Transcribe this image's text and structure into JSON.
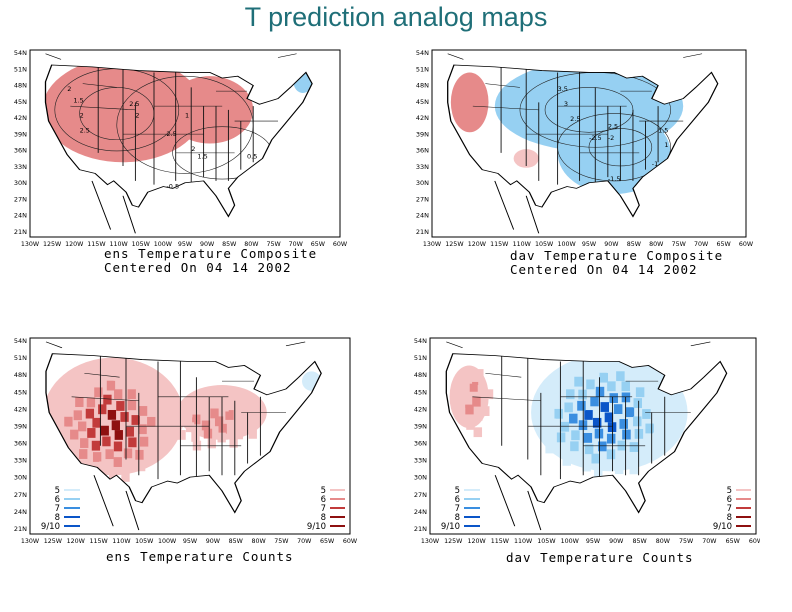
{
  "page": {
    "title": "T prediction analog maps"
  },
  "axes": {
    "lat_labels": [
      "54N",
      "51N",
      "48N",
      "45N",
      "42N",
      "39N",
      "36N",
      "33N",
      "30N",
      "27N",
      "24N",
      "21N"
    ],
    "lon_labels": [
      "130W",
      "125W",
      "120W",
      "115W",
      "110W",
      "105W",
      "100W",
      "95W",
      "90W",
      "85W",
      "80W",
      "75W",
      "70W",
      "65W",
      "60W"
    ]
  },
  "panels": [
    {
      "id": "ens-composite",
      "caption_line1": "ens Temperature Composite",
      "caption_line2": "Centered On 04 14 2002",
      "contour_labels": [
        "2",
        "1.5",
        "2",
        "2.5",
        "2.5",
        "2",
        "2.5",
        "2",
        "1",
        "1.5",
        "-0.5",
        "0.5"
      ]
    },
    {
      "id": "dav-composite",
      "caption_line1": "dav Temperature Composite",
      "caption_line2": "Centered On 04 14 2002",
      "contour_labels": [
        "3.5",
        "3",
        "2.5",
        "2.5",
        "-2.5",
        "-2",
        "1.5",
        "1",
        "-1.5",
        "-1"
      ]
    },
    {
      "id": "ens-counts",
      "caption_line1": "ens Temperature Counts",
      "legend_left": [
        "5",
        "6",
        "7",
        "8",
        "9/10"
      ],
      "legend_right": [
        "5",
        "6",
        "7",
        "8",
        "9/10"
      ]
    },
    {
      "id": "dav-counts",
      "caption_line1": "dav Temperature Counts",
      "legend_left": [
        "5",
        "6",
        "7",
        "8",
        "9/10"
      ],
      "legend_right": [
        "5",
        "6",
        "7",
        "8",
        "9/10"
      ]
    }
  ],
  "colors": {
    "warm_light": "#f4c4c4",
    "warm_mid": "#e68a8a",
    "warm_dark": "#c23b3b",
    "warm_deep": "#8e1010",
    "cool_light": "#d4ecfa",
    "cool_mid": "#96d0f2",
    "cool_dark": "#3a8ee0",
    "cool_deep": "#0a55c8",
    "title": "#1f6f78"
  }
}
